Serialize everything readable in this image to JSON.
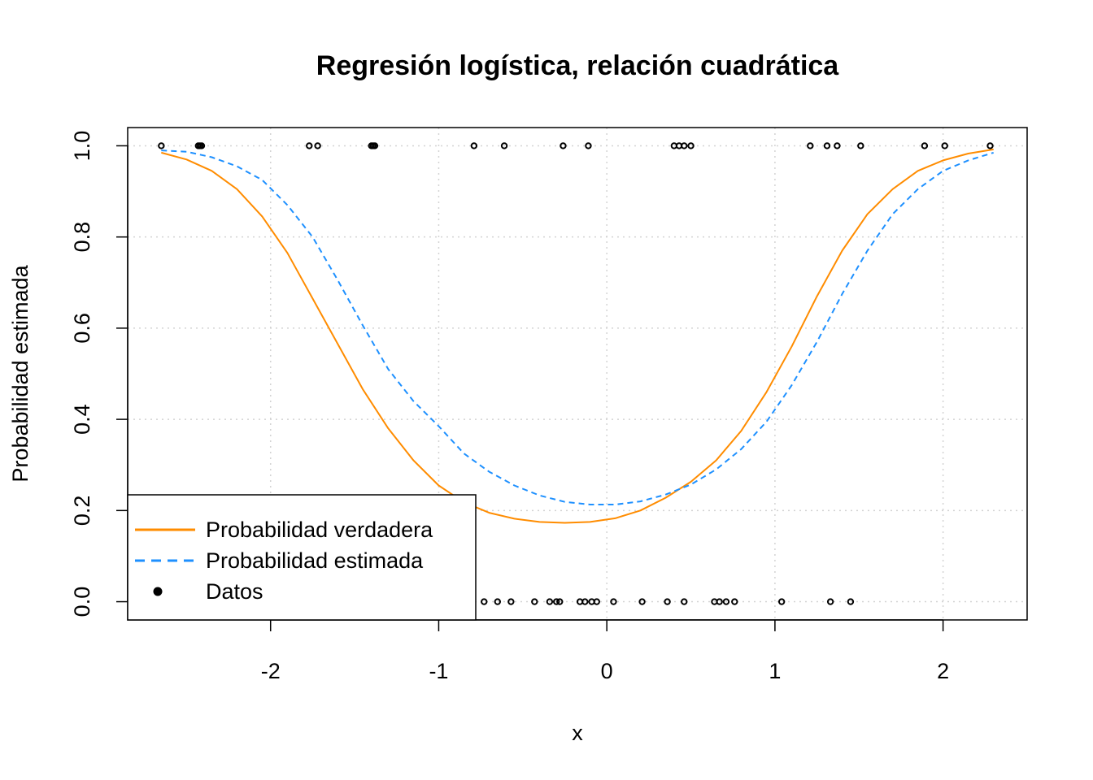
{
  "chart_data": {
    "type": "scatter",
    "title": "Regresión logística, relación cuadrática",
    "xlabel": "x",
    "ylabel": "Probabilidad estimada",
    "xlim": [
      -2.85,
      2.5
    ],
    "ylim": [
      -0.04,
      1.04
    ],
    "xticks": [
      -2,
      -1,
      0,
      1,
      2
    ],
    "xtick_labels": [
      "-2",
      "-1",
      "0",
      "1",
      "2"
    ],
    "yticks": [
      0.0,
      0.2,
      0.4,
      0.6,
      0.8,
      1.0
    ],
    "ytick_labels": [
      "0.0",
      "0.2",
      "0.4",
      "0.6",
      "0.8",
      "1.0"
    ],
    "grid": true,
    "legend_position": "bottom-left",
    "colors": {
      "true_prob": "#FF8C00",
      "est_prob": "#1E90FF",
      "data": "#000000",
      "grid": "#D3D3D3"
    },
    "series": [
      {
        "name": "Probabilidad verdadera",
        "style": "solid",
        "x": [
          -2.65,
          -2.5,
          -2.35,
          -2.2,
          -2.05,
          -1.9,
          -1.75,
          -1.6,
          -1.45,
          -1.3,
          -1.15,
          -1.0,
          -0.85,
          -0.7,
          -0.55,
          -0.4,
          -0.25,
          -0.1,
          0.05,
          0.2,
          0.35,
          0.5,
          0.65,
          0.8,
          0.95,
          1.1,
          1.25,
          1.4,
          1.55,
          1.7,
          1.85,
          2.0,
          2.15,
          2.3
        ],
        "values": [
          0.985,
          0.97,
          0.945,
          0.905,
          0.845,
          0.765,
          0.665,
          0.565,
          0.465,
          0.38,
          0.31,
          0.255,
          0.218,
          0.195,
          0.182,
          0.175,
          0.173,
          0.175,
          0.183,
          0.2,
          0.228,
          0.263,
          0.31,
          0.375,
          0.46,
          0.56,
          0.67,
          0.77,
          0.85,
          0.905,
          0.945,
          0.968,
          0.983,
          0.992
        ]
      },
      {
        "name": "Probabilidad estimada",
        "style": "dashed",
        "x": [
          -2.65,
          -2.5,
          -2.35,
          -2.2,
          -2.05,
          -1.9,
          -1.75,
          -1.6,
          -1.45,
          -1.3,
          -1.15,
          -1.0,
          -0.85,
          -0.7,
          -0.55,
          -0.4,
          -0.25,
          -0.1,
          0.05,
          0.2,
          0.35,
          0.5,
          0.65,
          0.8,
          0.95,
          1.1,
          1.25,
          1.4,
          1.55,
          1.7,
          1.85,
          2.0,
          2.15,
          2.3
        ],
        "values": [
          0.99,
          0.987,
          0.975,
          0.955,
          0.925,
          0.87,
          0.8,
          0.705,
          0.605,
          0.51,
          0.44,
          0.385,
          0.325,
          0.285,
          0.255,
          0.233,
          0.219,
          0.213,
          0.213,
          0.22,
          0.235,
          0.257,
          0.29,
          0.335,
          0.395,
          0.475,
          0.57,
          0.675,
          0.77,
          0.85,
          0.905,
          0.945,
          0.968,
          0.985
        ]
      },
      {
        "name": "Datos",
        "style": "points",
        "x": [
          -2.65,
          -2.43,
          -2.42,
          -2.41,
          -1.77,
          -1.72,
          -1.4,
          -1.39,
          -1.38,
          -0.79,
          -0.61,
          -0.26,
          -0.11,
          0.4,
          0.43,
          0.46,
          0.5,
          1.21,
          1.31,
          1.37,
          1.51,
          1.89,
          2.01,
          2.28,
          -0.73,
          -0.65,
          -0.57,
          -0.43,
          -0.34,
          -0.3,
          -0.28,
          -0.16,
          -0.13,
          -0.09,
          -0.06,
          0.04,
          0.21,
          0.36,
          0.46,
          0.64,
          0.67,
          0.71,
          0.76,
          1.04,
          1.33,
          1.45
        ],
        "values": [
          1,
          1,
          1,
          1,
          1,
          1,
          1,
          1,
          1,
          1,
          1,
          1,
          1,
          1,
          1,
          1,
          1,
          1,
          1,
          1,
          1,
          1,
          1,
          1,
          0,
          0,
          0,
          0,
          0,
          0,
          0,
          0,
          0,
          0,
          0,
          0,
          0,
          0,
          0,
          0,
          0,
          0,
          0,
          0,
          0,
          0
        ]
      }
    ]
  }
}
